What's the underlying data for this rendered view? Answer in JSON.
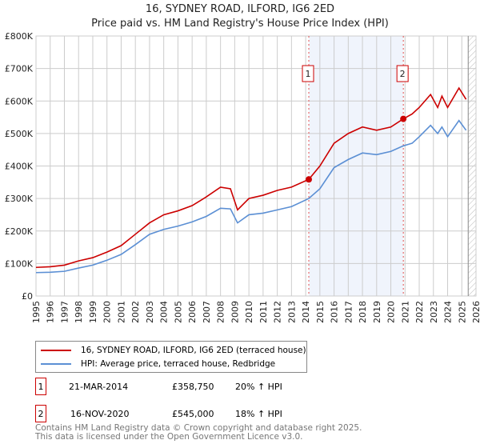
{
  "chart_data": {
    "type": "line",
    "title": "16, SYDNEY ROAD, ILFORD, IG6 2ED",
    "subtitle": "Price paid vs. HM Land Registry's House Price Index (HPI)",
    "xlim": [
      1995,
      2026
    ],
    "ylim": [
      0,
      800000
    ],
    "xticks": [
      "1995",
      "1996",
      "1997",
      "1998",
      "1999",
      "2000",
      "2001",
      "2002",
      "2003",
      "2004",
      "2005",
      "2006",
      "2007",
      "2008",
      "2009",
      "2010",
      "2011",
      "2012",
      "2013",
      "2014",
      "2015",
      "2016",
      "2017",
      "2018",
      "2019",
      "2020",
      "2021",
      "2022",
      "2023",
      "2024",
      "2025",
      "2026"
    ],
    "yticks": [
      {
        "v": 0,
        "label": "£0"
      },
      {
        "v": 100000,
        "label": "£100K"
      },
      {
        "v": 200000,
        "label": "£200K"
      },
      {
        "v": 300000,
        "label": "£300K"
      },
      {
        "v": 400000,
        "label": "£400K"
      },
      {
        "v": 500000,
        "label": "£500K"
      },
      {
        "v": 600000,
        "label": "£600K"
      },
      {
        "v": 700000,
        "label": "£700K"
      },
      {
        "v": 800000,
        "label": "£800K"
      }
    ],
    "grid": true,
    "shaded_range": [
      2014.22,
      2020.88
    ],
    "hatched_from": 2025.45,
    "series": [
      {
        "name": "16, SYDNEY ROAD, ILFORD, IG6 2ED (terraced house)",
        "color": "#cc0000",
        "x": [
          1995,
          1996,
          1997,
          1998,
          1999,
          2000,
          2001,
          2002,
          2003,
          2004,
          2005,
          2006,
          2007,
          2008,
          2008.7,
          2009.2,
          2010,
          2011,
          2012,
          2013,
          2014.22,
          2015,
          2016,
          2017,
          2018,
          2019,
          2020,
          2020.88,
          2021.5,
          2022,
          2022.8,
          2023.3,
          2023.6,
          2024,
          2024.8,
          2025.3
        ],
        "y": [
          88000,
          90000,
          95000,
          108000,
          118000,
          135000,
          155000,
          190000,
          225000,
          250000,
          262000,
          278000,
          305000,
          335000,
          330000,
          265000,
          300000,
          310000,
          325000,
          335000,
          358750,
          400000,
          470000,
          500000,
          520000,
          510000,
          520000,
          545000,
          560000,
          580000,
          620000,
          580000,
          615000,
          580000,
          640000,
          605000
        ]
      },
      {
        "name": "HPI: Average price, terraced house, Redbridge",
        "color": "#5b8fd4",
        "x": [
          1995,
          1996,
          1997,
          1998,
          1999,
          2000,
          2001,
          2002,
          2003,
          2004,
          2005,
          2006,
          2007,
          2008,
          2008.7,
          2009.2,
          2010,
          2011,
          2012,
          2013,
          2014.22,
          2015,
          2016,
          2017,
          2018,
          2019,
          2020,
          2020.88,
          2021.5,
          2022,
          2022.8,
          2023.3,
          2023.6,
          2024,
          2024.8,
          2025.3
        ],
        "y": [
          72000,
          73000,
          76000,
          86000,
          95000,
          110000,
          128000,
          158000,
          190000,
          205000,
          215000,
          228000,
          245000,
          270000,
          268000,
          225000,
          250000,
          255000,
          265000,
          275000,
          300000,
          330000,
          395000,
          420000,
          440000,
          435000,
          445000,
          462000,
          470000,
          490000,
          525000,
          500000,
          520000,
          490000,
          540000,
          510000
        ]
      }
    ],
    "markers": [
      {
        "label": "1",
        "x": 2014.22,
        "y": 358750
      },
      {
        "label": "2",
        "x": 2020.88,
        "y": 545000
      }
    ]
  },
  "transactions": [
    {
      "num": "1",
      "date": "21-MAR-2014",
      "price": "£358,750",
      "hpi": "20% ↑ HPI"
    },
    {
      "num": "2",
      "date": "16-NOV-2020",
      "price": "£545,000",
      "hpi": "18% ↑ HPI"
    }
  ],
  "footer": [
    "Contains HM Land Registry data © Crown copyright and database right 2025.",
    "This data is licensed under the Open Government Licence v3.0."
  ]
}
